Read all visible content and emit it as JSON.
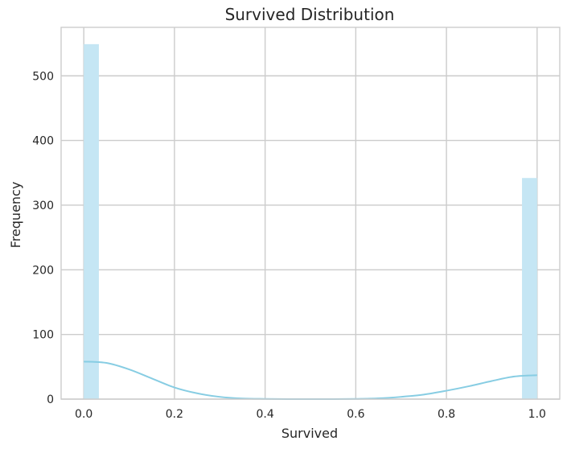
{
  "chart_data": {
    "type": "bar",
    "subtype": "histogram",
    "title": "Survived Distribution",
    "xlabel": "Survived",
    "ylabel": "Frequency",
    "xlim": [
      -0.05,
      1.05
    ],
    "ylim": [
      0,
      575
    ],
    "xticks": [
      0.0,
      0.2,
      0.4,
      0.6,
      0.8,
      1.0
    ],
    "xtick_labels": [
      "0.0",
      "0.2",
      "0.4",
      "0.6",
      "0.8",
      "1.0"
    ],
    "yticks": [
      0,
      100,
      200,
      300,
      400,
      500
    ],
    "ytick_labels": [
      "0",
      "100",
      "200",
      "300",
      "400",
      "500"
    ],
    "grid": true,
    "bars": [
      {
        "x0": 0.0,
        "x1": 0.0333,
        "value": 549
      },
      {
        "x0": 0.9667,
        "x1": 1.0,
        "value": 342
      }
    ],
    "kde": {
      "x": [
        0.0,
        0.05,
        0.1,
        0.15,
        0.2,
        0.25,
        0.3,
        0.35,
        0.4,
        0.45,
        0.5,
        0.55,
        0.6,
        0.65,
        0.7,
        0.75,
        0.8,
        0.85,
        0.9,
        0.95,
        1.0
      ],
      "y": [
        58,
        56,
        46,
        32,
        18,
        9,
        3.5,
        1,
        0.3,
        0,
        0,
        0,
        0.3,
        1.2,
        3.5,
        7,
        13,
        20,
        28,
        35,
        37
      ]
    },
    "colors": {
      "bar": "#c5e6f4",
      "kde": "#87cde3",
      "grid": "#cccccc",
      "axis": "#cccccc",
      "text": "#262626"
    }
  }
}
